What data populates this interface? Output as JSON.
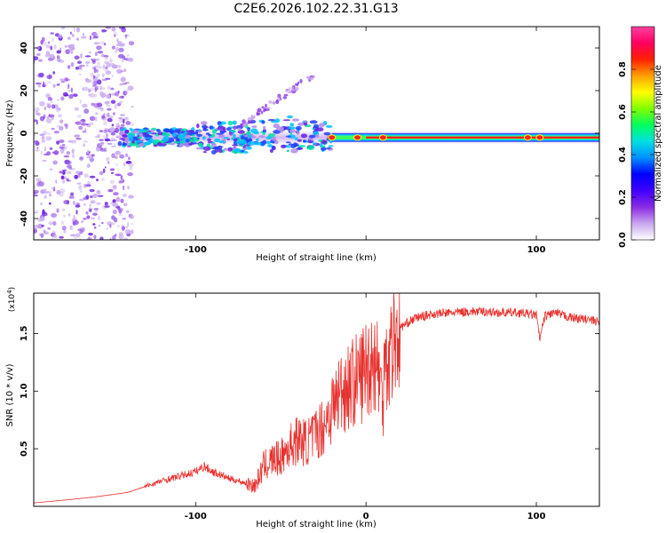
{
  "title": "C2E6.2026.102.22.31.G13",
  "chart_data": [
    {
      "type": "heatmap",
      "name": "spectrogram",
      "xlabel": "Height of straight line (km)",
      "ylabel": "Frequency (Hz)",
      "xlim": [
        -195,
        137
      ],
      "ylim": [
        -50,
        50
      ],
      "xticks": [
        -100,
        0,
        100
      ],
      "xtick_labels": [
        "-100",
        "",
        "100"
      ],
      "yticks": [
        -40,
        -20,
        0,
        20,
        40
      ],
      "ytick_labels": [
        "-40",
        "-20",
        "0",
        "20",
        "40"
      ],
      "colorbar": {
        "label": "Normalized spectral amplitude",
        "range": [
          0,
          1
        ],
        "ticks": [
          0.0,
          0.2,
          0.4,
          0.6,
          0.8
        ],
        "tick_labels": [
          "0.0",
          "0.2",
          "0.4",
          "0.6",
          "0.8"
        ],
        "colors": [
          "#ffffff",
          "#c9a6ee",
          "#8a2be2",
          "#4000ff",
          "#0000ff",
          "#0090ff",
          "#00e0e0",
          "#00ff60",
          "#80ff00",
          "#ffff00",
          "#ffa000",
          "#ff2000",
          "#ff0060",
          "#ff40a0"
        ]
      },
      "features": [
        {
          "name": "main-trace",
          "x_range": [
            -145,
            137
          ],
          "frequency_hz": -2,
          "note": "strongest (red) beyond 0 km"
        },
        {
          "name": "upper-branch",
          "x_range": [
            -80,
            -30
          ],
          "frequency_start_hz": 0,
          "frequency_end_hz": 28
        }
      ]
    },
    {
      "type": "line",
      "name": "snr",
      "xlabel": "Height of straight line (km)",
      "ylabel": "SNR (10 * v/v)",
      "scale_label": "(x10",
      "scale_exponent": "4",
      "xlim": [
        -195,
        137
      ],
      "ylim": [
        0,
        1.85
      ],
      "xticks": [
        -100,
        0,
        100
      ],
      "xtick_labels": [
        "-100",
        "0",
        "100"
      ],
      "yticks": [
        0.5,
        1.0,
        1.5
      ],
      "ytick_labels": [
        "0.5",
        "1.0",
        "1.5"
      ],
      "color": "#e8312e",
      "x": [
        -195,
        -180,
        -160,
        -140,
        -130,
        -120,
        -110,
        -100,
        -95,
        -90,
        -80,
        -70,
        -65,
        -60,
        -55,
        -50,
        -45,
        -40,
        -35,
        -30,
        -25,
        -20,
        -15,
        -10,
        -5,
        0,
        5,
        8,
        10,
        11,
        12,
        15,
        20,
        25,
        30,
        40,
        50,
        60,
        70,
        80,
        90,
        100,
        102,
        105,
        110,
        120,
        130,
        137
      ],
      "values": [
        0.03,
        0.05,
        0.08,
        0.12,
        0.17,
        0.22,
        0.26,
        0.3,
        0.35,
        0.3,
        0.24,
        0.2,
        0.18,
        0.35,
        0.4,
        0.42,
        0.52,
        0.58,
        0.55,
        0.62,
        0.7,
        0.85,
        1.0,
        1.05,
        1.1,
        1.2,
        1.3,
        1.15,
        0.8,
        1.8,
        1.2,
        1.4,
        1.55,
        1.6,
        1.64,
        1.67,
        1.68,
        1.69,
        1.69,
        1.68,
        1.68,
        1.66,
        1.45,
        1.65,
        1.68,
        1.64,
        1.62,
        1.6
      ]
    }
  ]
}
